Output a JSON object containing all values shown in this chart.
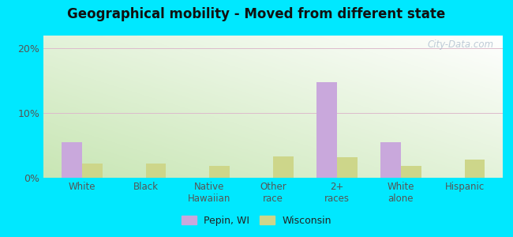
{
  "title": "Geographical mobility - Moved from different state",
  "categories": [
    "White",
    "Black",
    "Native\nHawaiian",
    "Other\nrace",
    "2+\nraces",
    "White\nalone",
    "Hispanic"
  ],
  "pepin_values": [
    5.5,
    0,
    0,
    0,
    14.8,
    5.5,
    0
  ],
  "wisconsin_values": [
    2.2,
    2.2,
    1.8,
    3.3,
    3.2,
    1.8,
    2.8
  ],
  "pepin_color": "#c9a8dc",
  "wisconsin_color": "#cdd68a",
  "ylim": [
    0,
    22
  ],
  "yticks": [
    0,
    10,
    20
  ],
  "ytick_labels": [
    "0%",
    "10%",
    "20%"
  ],
  "bar_width": 0.32,
  "outer_background": "#00e8ff",
  "legend_pepin": "Pepin, WI",
  "legend_wisconsin": "Wisconsin",
  "watermark": "City-Data.com"
}
